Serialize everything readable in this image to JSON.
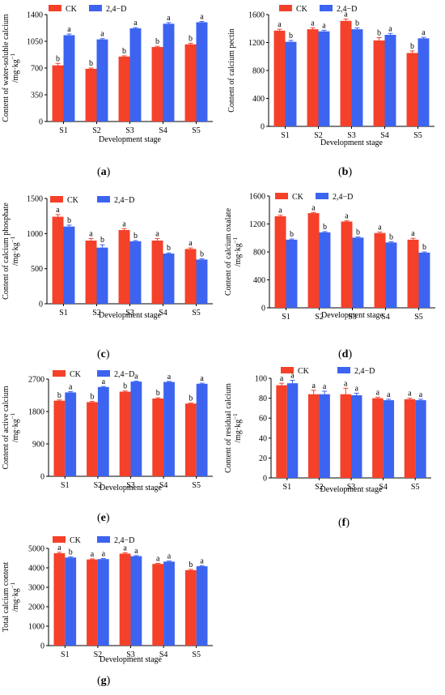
{
  "colors": {
    "CK": "#f5402a",
    "D24": "#3c64f0"
  },
  "chart_data": [
    {
      "id": "a",
      "type": "bar",
      "panel_label": "a",
      "ylabel": "Content of water-soluble calcium",
      "yunit": "/mg·kg",
      "xlabel": "Development stage",
      "categories": [
        "S1",
        "S2",
        "S3",
        "S4",
        "S5"
      ],
      "ylim": [
        0,
        1400
      ],
      "yticks": [
        "0",
        "350",
        "700",
        "1050",
        "1400"
      ],
      "legend": [
        "CK",
        "2,4−D"
      ],
      "series": [
        {
          "name": "CK",
          "values": [
            735,
            690,
            850,
            975,
            1010
          ],
          "errors": [
            25,
            10,
            10,
            10,
            15
          ],
          "letters": [
            "b",
            "b",
            "b",
            "b",
            "b"
          ]
        },
        {
          "name": "2,4−D",
          "values": [
            1130,
            1075,
            1220,
            1280,
            1300
          ],
          "errors": [
            15,
            10,
            10,
            15,
            10
          ],
          "letters": [
            "a",
            "a",
            "a",
            "a",
            "a"
          ]
        }
      ]
    },
    {
      "id": "b",
      "type": "bar",
      "panel_label": "b",
      "ylabel": "Content of calcium pectin",
      "yunit": "",
      "xlabel": "Development stage",
      "categories": [
        "S1",
        "S2",
        "S3",
        "S4",
        "S5"
      ],
      "ylim": [
        0,
        1600
      ],
      "yticks": [
        "0",
        "400",
        "800",
        "1200",
        "1600"
      ],
      "legend": [
        "CK",
        "2,4−D"
      ],
      "series": [
        {
          "name": "CK",
          "values": [
            1370,
            1390,
            1510,
            1230,
            1050
          ],
          "errors": [
            20,
            20,
            25,
            40,
            30
          ],
          "letters": [
            "a",
            "a",
            "a",
            "b",
            "b"
          ]
        },
        {
          "name": "2,4−D",
          "values": [
            1210,
            1360,
            1390,
            1310,
            1260
          ],
          "errors": [
            20,
            15,
            20,
            20,
            15
          ],
          "letters": [
            "b",
            "a",
            "b",
            "a",
            "a"
          ]
        }
      ]
    },
    {
      "id": "c",
      "type": "bar",
      "panel_label": "c",
      "ylabel": "Content of calcium phosphate",
      "yunit": "/mg·kg",
      "xlabel": "Development stage",
      "categories": [
        "S1",
        "S2",
        "S3",
        "S4",
        "S5"
      ],
      "ylim": [
        0,
        1500
      ],
      "yticks": [
        "0",
        "500",
        "1000",
        "1500"
      ],
      "legend": [
        "CK",
        "2,4−D"
      ],
      "series": [
        {
          "name": "CK",
          "values": [
            1240,
            900,
            1050,
            900,
            780
          ],
          "errors": [
            30,
            30,
            20,
            30,
            15
          ],
          "letters": [
            "a",
            "a",
            "a",
            "a",
            "a"
          ]
        },
        {
          "name": "2,4−D",
          "values": [
            1100,
            800,
            890,
            715,
            630
          ],
          "errors": [
            20,
            40,
            10,
            10,
            10
          ],
          "letters": [
            "b",
            "b",
            "b",
            "b",
            "b"
          ]
        }
      ]
    },
    {
      "id": "d",
      "type": "bar",
      "panel_label": "d",
      "ylabel": "Content of calcium oxalate",
      "yunit": "/mg·kg",
      "xlabel": "Development stage",
      "categories": [
        "S1",
        "S2",
        "S3",
        "S4",
        "S5"
      ],
      "ylim": [
        0,
        1600
      ],
      "yticks": [
        "0",
        "400",
        "800",
        "1200",
        "1600"
      ],
      "legend": [
        "CK",
        "2,4−D"
      ],
      "series": [
        {
          "name": "CK",
          "values": [
            1310,
            1355,
            1235,
            1070,
            975
          ],
          "errors": [
            15,
            10,
            10,
            15,
            20
          ],
          "letters": [
            "a",
            "a",
            "a",
            "a",
            "a"
          ]
        },
        {
          "name": "2,4−D",
          "values": [
            975,
            1080,
            1005,
            935,
            790
          ],
          "errors": [
            10,
            10,
            10,
            10,
            10
          ],
          "letters": [
            "b",
            "b",
            "b",
            "b",
            "b"
          ]
        }
      ]
    },
    {
      "id": "e",
      "type": "bar",
      "panel_label": "e",
      "ylabel": "Content of active calcium",
      "yunit": "/mg·kg",
      "xlabel": "Development stage",
      "categories": [
        "S1",
        "S2",
        "S3",
        "S4",
        "S5"
      ],
      "ylim": [
        0,
        2700
      ],
      "yticks": [
        "0",
        "900",
        "1800",
        "2700"
      ],
      "legend": [
        "CK",
        "2,4−D"
      ],
      "series": [
        {
          "name": "CK",
          "values": [
            2100,
            2060,
            2350,
            2160,
            2020
          ],
          "errors": [
            20,
            20,
            20,
            20,
            15
          ],
          "letters": [
            "b",
            "b",
            "b",
            "b",
            "b"
          ]
        },
        {
          "name": "2,4−D",
          "values": [
            2330,
            2480,
            2630,
            2620,
            2570
          ],
          "errors": [
            20,
            15,
            15,
            15,
            15
          ],
          "letters": [
            "a",
            "a",
            "a",
            "a",
            "a"
          ]
        }
      ]
    },
    {
      "id": "f",
      "type": "bar",
      "panel_label": "f",
      "ylabel": "Content of residual calcium",
      "yunit": "/mg·kg",
      "xlabel": "Development stage",
      "categories": [
        "S1",
        "S2",
        "S3",
        "S4",
        "S5"
      ],
      "ylim": [
        0,
        100
      ],
      "yticks": [
        "0",
        "20",
        "40",
        "60",
        "80",
        "100"
      ],
      "legend": [
        "CK",
        "2,4−D"
      ],
      "series": [
        {
          "name": "CK",
          "values": [
            93,
            84,
            84,
            80,
            79
          ],
          "errors": [
            2,
            4,
            6,
            1,
            1
          ],
          "letters": [
            "a",
            "a",
            "a",
            "a",
            "a"
          ]
        },
        {
          "name": "2,4−D",
          "values": [
            95,
            84,
            83,
            78,
            78
          ],
          "errors": [
            3,
            3,
            2,
            1,
            1
          ],
          "letters": [
            "a",
            "a",
            "a",
            "a",
            "a"
          ]
        }
      ]
    },
    {
      "id": "g",
      "type": "bar",
      "panel_label": "g",
      "ylabel": "Total calcium content",
      "yunit": "/mg·kg",
      "xlabel": "Development stage",
      "categories": [
        "S1",
        "S2",
        "S3",
        "S4",
        "S5"
      ],
      "ylim": [
        0,
        5000
      ],
      "yticks": [
        "0",
        "1000",
        "2000",
        "3000",
        "4000",
        "5000"
      ],
      "legend": [
        "CK",
        "2,4−D"
      ],
      "series": [
        {
          "name": "CK",
          "values": [
            4750,
            4430,
            4730,
            4200,
            3880
          ],
          "errors": [
            50,
            30,
            40,
            30,
            40
          ],
          "letters": [
            "a",
            "a",
            "a",
            "a",
            "b"
          ]
        },
        {
          "name": "2,4−D",
          "values": [
            4530,
            4450,
            4600,
            4320,
            4080
          ],
          "errors": [
            30,
            30,
            30,
            30,
            30
          ],
          "letters": [
            "b",
            "a",
            "a",
            "a",
            "a"
          ]
        }
      ]
    }
  ]
}
